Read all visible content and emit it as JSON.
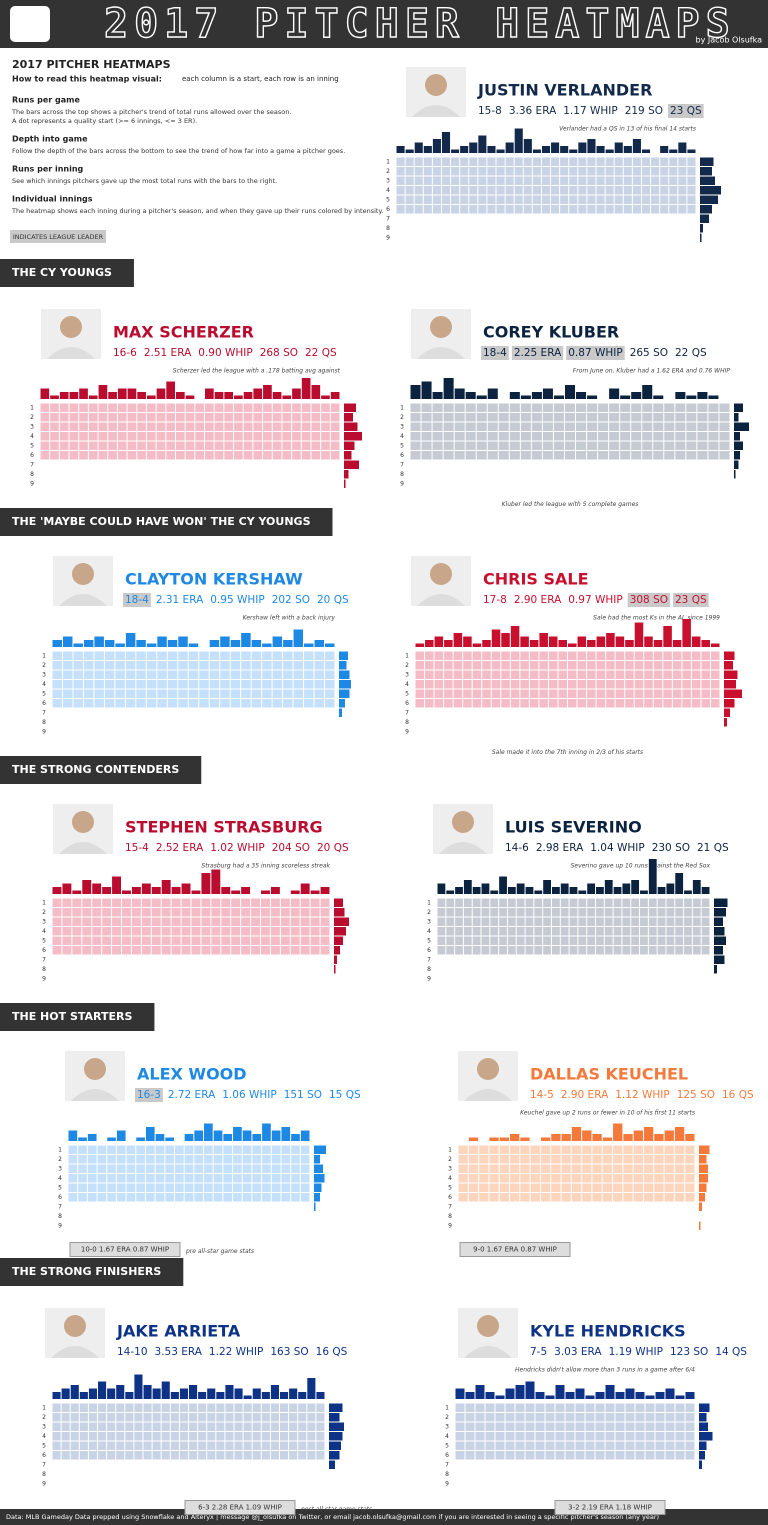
{
  "header": {
    "title": "2017 PITCHER HEATMAPS",
    "byline": "by Jacob Olsufka"
  },
  "intro": {
    "title": "2017 PITCHER HEATMAPS",
    "how_label": "How to read this heatmap visual:",
    "how_text": "each column is a start, each row is an inning",
    "items": [
      {
        "heading": "Runs per game",
        "lines": [
          "The bars across the top shows a pitcher's trend of total runs allowed over the season.",
          "A dot represents a quality start (>= 6 innings, <= 3 ER)."
        ]
      },
      {
        "heading": "Depth into game",
        "lines": [
          "Follow the depth of the bars across the bottom to see the trend of how far into a game a pitcher goes."
        ]
      },
      {
        "heading": "Runs per inning",
        "lines": [
          "See which innings pitchers gave up the most total runs with the bars to the right."
        ]
      },
      {
        "heading": "Individual innings",
        "lines": [
          "The heatmap shows each inning during a pitcher's season, and when they gave up their runs colored by intensity."
        ]
      }
    ],
    "legend": "INDICATES LEAGUE LEADER"
  },
  "inning_labels": [
    "1",
    "2",
    "3",
    "4",
    "5",
    "6",
    "7",
    "8",
    "9"
  ],
  "sections": [
    "THE CY YOUNGS",
    "THE 'MAYBE COULD HAVE WON' THE CY YOUNGS",
    "THE STRONG CONTENDERS",
    "THE HOT STARTERS",
    "THE STRONG FINISHERS"
  ],
  "chart_data": [
    {
      "type": "heatmap",
      "title": "JUSTIN VERLANDER",
      "color": "#13294b",
      "tint": "#c9d3e6",
      "stats": [
        {
          "text": "15-8",
          "leader": false
        },
        {
          "text": "3.36 ERA",
          "leader": false
        },
        {
          "text": "1.17 WHIP",
          "leader": false
        },
        {
          "text": "219 SO",
          "leader": false
        },
        {
          "text": "23 QS",
          "leader": true
        }
      ],
      "note": "Verlander had a QS in 13 of his final 14 starts",
      "ylim": [
        0,
        10
      ],
      "xlim": [
        0,
        20
      ],
      "values": [
        2,
        1,
        3,
        2,
        4,
        6,
        1,
        2,
        3,
        5,
        2,
        1,
        3,
        7,
        4,
        1,
        2,
        3,
        2,
        1,
        3,
        4,
        2,
        1,
        3,
        2,
        4,
        1,
        0,
        2,
        1,
        3,
        1
      ],
      "innings": [
        9,
        8,
        10,
        14,
        12,
        8,
        6,
        2,
        1
      ]
    },
    {
      "type": "heatmap",
      "title": "MAX SCHERZER",
      "color": "#ba0c2f",
      "tint": "#f4bcc6",
      "stats": [
        {
          "text": "16-6",
          "leader": false
        },
        {
          "text": "2.51 ERA",
          "leader": false
        },
        {
          "text": "0.90 WHIP",
          "leader": false
        },
        {
          "text": "268 SO",
          "leader": false
        },
        {
          "text": "22 QS",
          "leader": false
        }
      ],
      "note": "Scherzer led the league with a .178 batting avg against",
      "ylim": [
        0,
        10
      ],
      "xlim": [
        0,
        20
      ],
      "values": [
        3,
        1,
        2,
        2,
        3,
        1,
        4,
        2,
        3,
        3,
        2,
        1,
        3,
        5,
        2,
        1,
        0,
        3,
        2,
        2,
        1,
        2,
        3,
        4,
        2,
        1,
        3,
        6,
        4,
        1,
        2
      ],
      "innings": [
        8,
        6,
        9,
        12,
        7,
        5,
        10,
        3,
        1
      ]
    },
    {
      "type": "heatmap",
      "title": "COREY KLUBER",
      "color": "#0c2340",
      "tint": "#c6cbd3",
      "stats": [
        {
          "text": "18-4",
          "leader": true
        },
        {
          "text": "2.25 ERA",
          "leader": true
        },
        {
          "text": "0.87 WHIP",
          "leader": true
        },
        {
          "text": "265 SO",
          "leader": false
        },
        {
          "text": "22 QS",
          "leader": false
        }
      ],
      "note": "From June on, Kluber had a 1.62 ERA and 0.76 WHIP",
      "bottom_note": "Kluber led the league with 5 complete games",
      "ylim": [
        0,
        10
      ],
      "xlim": [
        0,
        20
      ],
      "values": [
        4,
        5,
        2,
        6,
        3,
        2,
        1,
        3,
        0,
        2,
        1,
        2,
        3,
        1,
        4,
        2,
        1,
        0,
        3,
        1,
        2,
        4,
        1,
        0,
        2,
        1,
        2,
        1,
        0
      ],
      "innings": [
        6,
        3,
        10,
        4,
        6,
        4,
        3,
        1,
        0
      ]
    },
    {
      "type": "heatmap",
      "title": "CLAYTON KERSHAW",
      "color": "#1e88e5",
      "tint": "#c4e0fb",
      "stats": [
        {
          "text": "18-4",
          "leader": true
        },
        {
          "text": "2.31 ERA",
          "leader": false
        },
        {
          "text": "0.95 WHIP",
          "leader": false
        },
        {
          "text": "202 SO",
          "leader": false
        },
        {
          "text": "20 QS",
          "leader": false
        }
      ],
      "note": "Kershaw left with a back injury",
      "ylim": [
        0,
        10
      ],
      "xlim": [
        0,
        20
      ],
      "values": [
        2,
        3,
        1,
        2,
        3,
        2,
        1,
        4,
        2,
        1,
        3,
        2,
        3,
        1,
        0,
        2,
        3,
        2,
        4,
        2,
        1,
        3,
        2,
        5,
        1,
        2,
        1
      ],
      "innings": [
        6,
        5,
        7,
        8,
        7,
        4,
        2,
        0,
        0
      ]
    },
    {
      "type": "heatmap",
      "title": "CHRIS SALE",
      "color": "#c8102e",
      "tint": "#f4bcc6",
      "stats": [
        {
          "text": "17-8",
          "leader": false
        },
        {
          "text": "2.90 ERA",
          "leader": false
        },
        {
          "text": "0.97 WHIP",
          "leader": false
        },
        {
          "text": "308 SO",
          "leader": true
        },
        {
          "text": "23 QS",
          "leader": true
        }
      ],
      "note": "Sale had the most Ks in the AL since 1999",
      "bottom_note": "Sale made it into the 7th inning in 2/3 of his starts",
      "ylim": [
        0,
        10
      ],
      "xlim": [
        0,
        20
      ],
      "values": [
        1,
        2,
        3,
        2,
        4,
        3,
        1,
        2,
        5,
        4,
        6,
        3,
        2,
        4,
        3,
        2,
        1,
        3,
        2,
        3,
        4,
        3,
        2,
        7,
        3,
        2,
        6,
        2,
        8,
        3,
        2,
        1
      ],
      "innings": [
        7,
        6,
        9,
        8,
        12,
        7,
        4,
        2,
        0
      ]
    },
    {
      "type": "heatmap",
      "title": "STEPHEN STRASBURG",
      "color": "#ba0c2f",
      "tint": "#f4bcc6",
      "stats": [
        {
          "text": "15-4",
          "leader": false
        },
        {
          "text": "2.52 ERA",
          "leader": false
        },
        {
          "text": "1.02 WHIP",
          "leader": false
        },
        {
          "text": "204 SO",
          "leader": false
        },
        {
          "text": "20 QS",
          "leader": false
        }
      ],
      "note": "Strasburg had a 35 inning scoreless streak",
      "ylim": [
        0,
        10
      ],
      "xlim": [
        0,
        20
      ],
      "values": [
        2,
        3,
        1,
        4,
        3,
        2,
        5,
        1,
        2,
        3,
        2,
        4,
        2,
        3,
        1,
        6,
        7,
        2,
        1,
        2,
        0,
        1,
        2,
        0,
        1,
        3,
        1,
        2
      ],
      "innings": [
        6,
        7,
        10,
        8,
        6,
        4,
        2,
        1,
        0
      ]
    },
    {
      "type": "heatmap",
      "title": "LUIS SEVERINO",
      "color": "#0c2340",
      "tint": "#c6cbd3",
      "stats": [
        {
          "text": "14-6",
          "leader": false
        },
        {
          "text": "2.98 ERA",
          "leader": false
        },
        {
          "text": "1.04 WHIP",
          "leader": false
        },
        {
          "text": "230 SO",
          "leader": false
        },
        {
          "text": "21 QS",
          "leader": false
        }
      ],
      "note": "Severino gave up 10 runs against the Red Sox",
      "ylim": [
        0,
        10
      ],
      "xlim": [
        0,
        20
      ],
      "values": [
        3,
        1,
        2,
        4,
        2,
        3,
        1,
        5,
        2,
        3,
        2,
        1,
        4,
        2,
        3,
        2,
        1,
        3,
        2,
        4,
        2,
        3,
        4,
        1,
        10,
        2,
        3,
        6,
        1,
        4,
        2
      ],
      "innings": [
        9,
        8,
        6,
        7,
        8,
        6,
        7,
        2,
        0
      ]
    },
    {
      "type": "heatmap",
      "title": "ALEX WOOD",
      "color": "#1e88e5",
      "tint": "#c4e0fb",
      "stats": [
        {
          "text": "16-3",
          "leader": true
        },
        {
          "text": "2.72 ERA",
          "leader": false
        },
        {
          "text": "1.06 WHIP",
          "leader": false
        },
        {
          "text": "151 SO",
          "leader": false
        },
        {
          "text": "15 QS",
          "leader": false
        }
      ],
      "box": "10-0  1.67 ERA  0.87 WHIP",
      "box_note": "pre all-star game stats",
      "ylim": [
        0,
        10
      ],
      "xlim": [
        0,
        20
      ],
      "values": [
        3,
        1,
        2,
        0,
        1,
        3,
        0,
        1,
        4,
        2,
        1,
        0,
        2,
        3,
        5,
        3,
        2,
        4,
        3,
        2,
        5,
        3,
        4,
        2,
        3
      ],
      "innings": [
        8,
        4,
        6,
        7,
        5,
        4,
        1,
        0,
        0
      ]
    },
    {
      "type": "heatmap",
      "title": "DALLAS KEUCHEL",
      "color": "#f4793b",
      "tint": "#fdd5bd",
      "stats": [
        {
          "text": "14-5",
          "leader": false
        },
        {
          "text": "2.90 ERA",
          "leader": false
        },
        {
          "text": "1.12 WHIP",
          "leader": false
        },
        {
          "text": "125 SO",
          "leader": false
        },
        {
          "text": "16 QS",
          "leader": false
        }
      ],
      "note": "Keuchel gave up 2 runs or fewer in 10 of his first 11 starts",
      "box": "9-0  1.67 ERA  0.87 WHIP",
      "ylim": [
        0,
        10
      ],
      "xlim": [
        0,
        20
      ],
      "values": [
        0,
        1,
        0,
        1,
        1,
        2,
        1,
        0,
        1,
        2,
        2,
        4,
        3,
        2,
        1,
        5,
        2,
        3,
        4,
        2,
        3,
        4,
        2
      ],
      "innings": [
        7,
        5,
        6,
        6,
        5,
        4,
        2,
        0,
        1
      ]
    },
    {
      "type": "heatmap",
      "title": "JAKE ARRIETA",
      "color": "#0e3386",
      "tint": "#c9d3e6",
      "stats": [
        {
          "text": "14-10",
          "leader": false
        },
        {
          "text": "3.53 ERA",
          "leader": false
        },
        {
          "text": "1.22 WHIP",
          "leader": false
        },
        {
          "text": "163 SO",
          "leader": false
        },
        {
          "text": "16 QS",
          "leader": false
        }
      ],
      "box": "6-3  2.28 ERA  1.09 WHIP",
      "box_note": "post all-star game stats",
      "ylim": [
        0,
        10
      ],
      "xlim": [
        0,
        20
      ],
      "values": [
        2,
        3,
        4,
        2,
        3,
        5,
        3,
        4,
        2,
        7,
        4,
        3,
        5,
        2,
        3,
        4,
        2,
        3,
        2,
        4,
        3,
        1,
        3,
        2,
        4,
        2,
        3,
        2,
        6,
        2
      ],
      "innings": [
        9,
        7,
        10,
        9,
        8,
        7,
        4,
        0,
        0
      ]
    },
    {
      "type": "heatmap",
      "title": "KYLE HENDRICKS",
      "color": "#0e3386",
      "tint": "#c9d3e6",
      "stats": [
        {
          "text": "7-5",
          "leader": false
        },
        {
          "text": "3.03 ERA",
          "leader": false
        },
        {
          "text": "1.19 WHIP",
          "leader": false
        },
        {
          "text": "123 SO",
          "leader": false
        },
        {
          "text": "14 QS",
          "leader": false
        }
      ],
      "note": "Hendricks didn't allow more than 3 runs in a game after 6/4",
      "box": "3-2  2.19 ERA  1.18 WHIP",
      "ylim": [
        0,
        10
      ],
      "xlim": [
        0,
        20
      ],
      "values": [
        3,
        2,
        4,
        2,
        1,
        3,
        4,
        5,
        2,
        1,
        4,
        2,
        3,
        1,
        2,
        4,
        2,
        3,
        2,
        1,
        2,
        3,
        1,
        2
      ],
      "innings": [
        7,
        5,
        6,
        9,
        5,
        4,
        2,
        0,
        0
      ]
    }
  ],
  "footer": "Data: MLB Gameday Data prepped using Snowflake and Alteryx  |  message @j_olsufka on Twitter, or email jacob.olsufka@gmail.com if you are interested in seeing a specific pitcher's season (any year)"
}
